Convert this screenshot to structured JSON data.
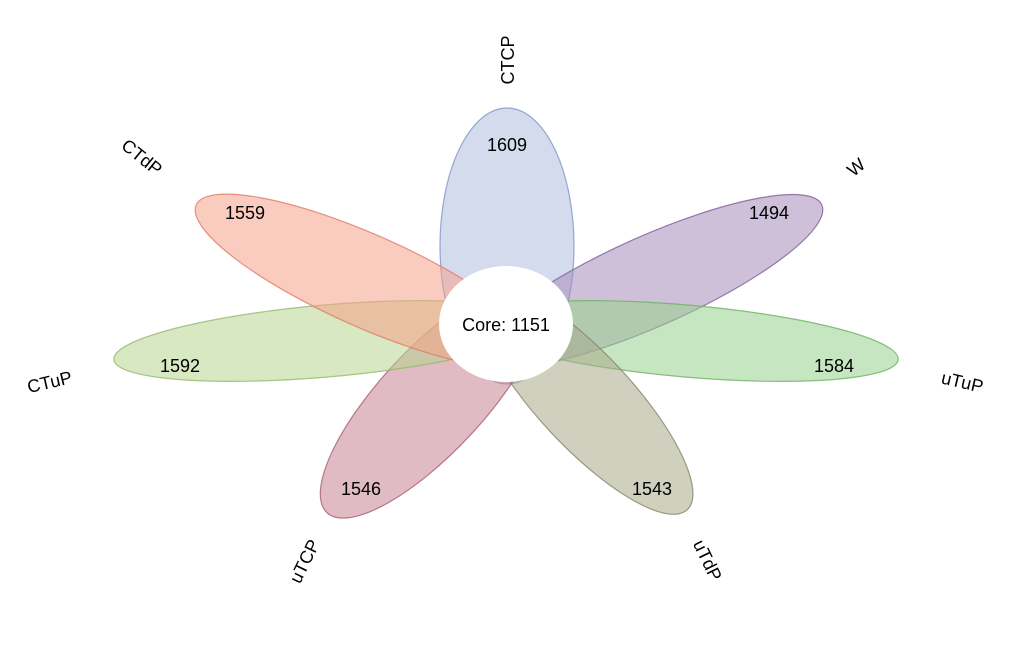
{
  "core": {
    "label": "Core: 1151",
    "fill": "#ffffff"
  },
  "petals": [
    {
      "name": "CTCP",
      "count": "1609",
      "fill": "#b0bddf",
      "stroke": "#7f93c9"
    },
    {
      "name": "W",
      "count": "1494",
      "fill": "#a58cb8",
      "stroke": "#7d5e97"
    },
    {
      "name": "uTuP",
      "count": "1584",
      "fill": "#97cf8e",
      "stroke": "#6fb064"
    },
    {
      "name": "uTdP",
      "count": "1543",
      "fill": "#a9a98a",
      "stroke": "#84846a"
    },
    {
      "name": "uTCP",
      "count": "1546",
      "fill": "#c98393",
      "stroke": "#a85d70"
    },
    {
      "name": "CTuP",
      "count": "1592",
      "fill": "#b7d58f",
      "stroke": "#93b96a"
    },
    {
      "name": "CTdP",
      "count": "1559",
      "fill": "#f6a08b",
      "stroke": "#e07b64"
    }
  ]
}
